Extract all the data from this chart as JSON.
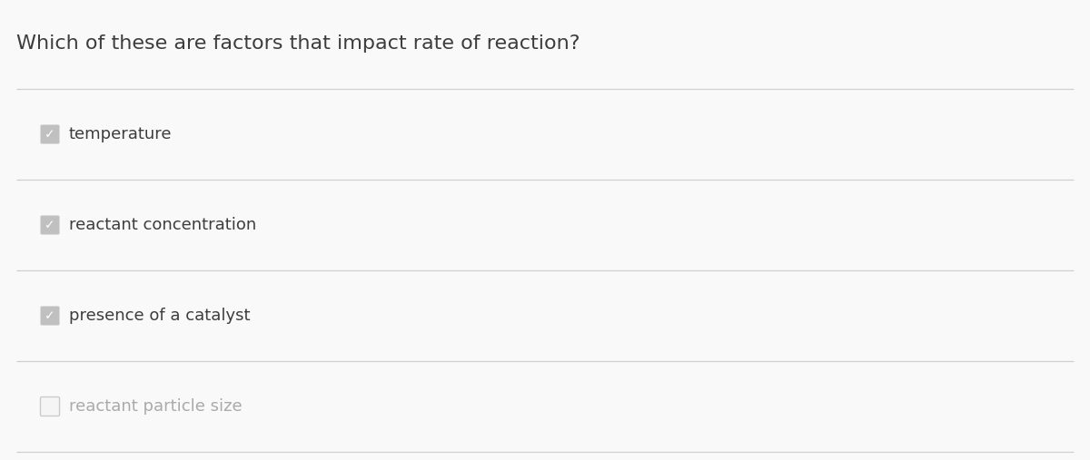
{
  "title": "Which of these are factors that impact rate of reaction?",
  "title_color": "#3d3d3d",
  "title_fontsize": 16,
  "background_color": "#f9f9f9",
  "options": [
    {
      "label": "temperature",
      "checked": true
    },
    {
      "label": "reactant concentration",
      "checked": true
    },
    {
      "label": "presence of a catalyst",
      "checked": true
    },
    {
      "label": "reactant particle size",
      "checked": false
    }
  ],
  "checked_box_color": "#c0c0c0",
  "checked_check_color": "#ffffff",
  "unchecked_box_facecolor": "#f5f5f5",
  "unchecked_box_edgecolor": "#cccccc",
  "checked_text_color": "#3d3d3d",
  "unchecked_text_color": "#aaaaaa",
  "separator_color": "#d0d0d0",
  "option_fontsize": 13,
  "fig_width": 12.0,
  "fig_height": 5.07,
  "dpi": 100
}
